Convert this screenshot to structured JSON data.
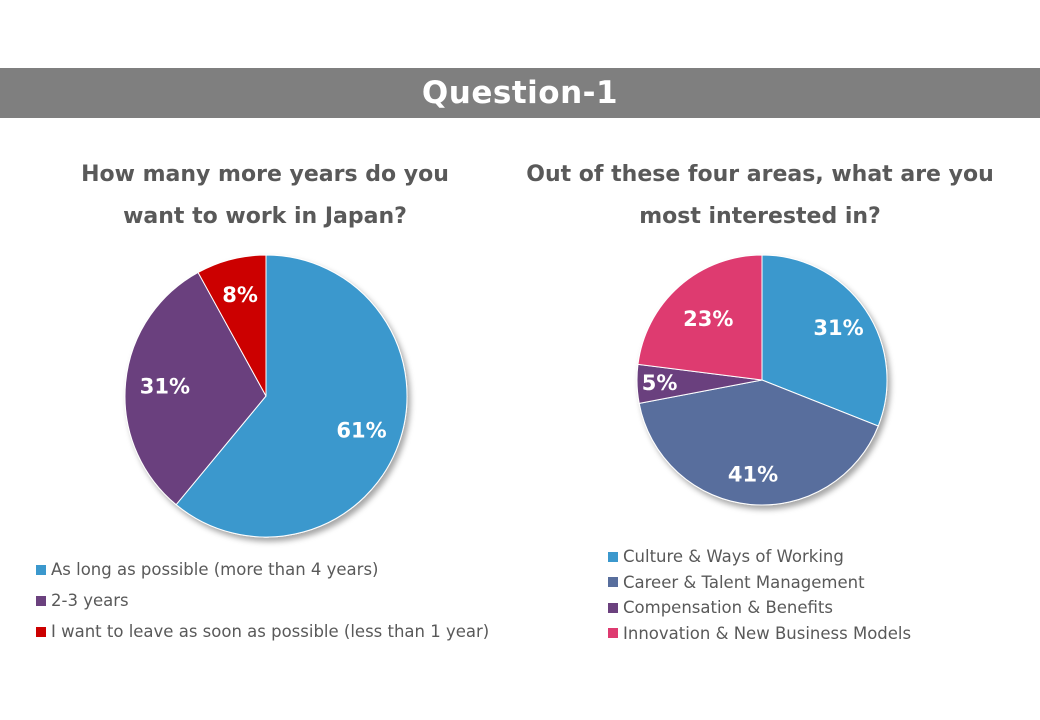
{
  "header": {
    "title": "Question-1"
  },
  "chart_data": [
    {
      "type": "pie",
      "title_lines": [
        "How many more years do you",
        "want to work in Japan?"
      ],
      "slices": [
        {
          "name": "As long as possible (more than 4 years)",
          "value": 61,
          "label": "61%",
          "color": "#3b98cd"
        },
        {
          "name": "2-3 years",
          "value": 31,
          "label": "31%",
          "color": "#6b417e"
        },
        {
          "name": "I want to leave as soon as possible (less than 1 year)",
          "value": 8,
          "label": "8%",
          "color": "#cc0000"
        }
      ],
      "start": "12 o'clock",
      "direction": "clockwise",
      "legend_position": "bottom-left"
    },
    {
      "type": "pie",
      "title_lines": [
        "Out of these four areas, what are you",
        "most interested in?"
      ],
      "slices": [
        {
          "name": "Culture & Ways of Working",
          "value": 31,
          "label": "31%",
          "color": "#3b98cd"
        },
        {
          "name": "Career & Talent Management",
          "value": 41,
          "label": "41%",
          "color": "#586e9d"
        },
        {
          "name": "Compensation & Benefits",
          "value": 5,
          "label": "5%",
          "color": "#6b417e"
        },
        {
          "name": "Innovation & New Business Models",
          "value": 23,
          "label": "23%",
          "color": "#de3a70"
        }
      ],
      "start": "12 o'clock",
      "direction": "clockwise",
      "legend_position": "bottom"
    }
  ]
}
